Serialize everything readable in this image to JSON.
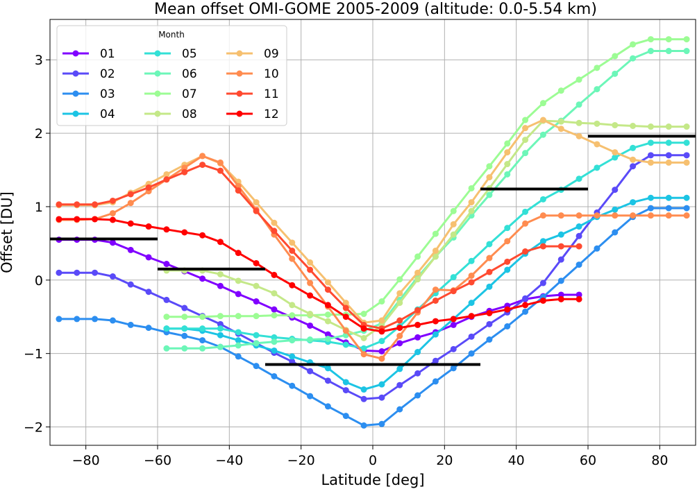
{
  "chart_data": {
    "type": "line",
    "title": "Mean offset OMI-GOME 2005-2009 (altitude: 0.0-5.54 km)",
    "xlabel": "Latitude [deg]",
    "ylabel": "Offset [DU]",
    "xlim": [
      -90,
      90
    ],
    "ylim": [
      -2.25,
      3.55
    ],
    "xticks": [
      -80,
      -60,
      -40,
      -20,
      0,
      20,
      40,
      60,
      80
    ],
    "xtick_labels": [
      "−80",
      "−60",
      "−40",
      "−20",
      "0",
      "20",
      "40",
      "60",
      "80"
    ],
    "yticks": [
      -2,
      -1,
      0,
      1,
      2,
      3
    ],
    "ytick_labels": [
      "−2",
      "−1",
      "0",
      "1",
      "2",
      "3"
    ],
    "grid": true,
    "legend": {
      "title": "Month",
      "placement": "top-left",
      "columns": 3
    },
    "series": [
      {
        "name": "01",
        "color": "#8000ff",
        "x": [
          -87.5,
          -82.5,
          -77.5,
          -72.5,
          -67.5,
          -62.5,
          -57.5,
          -52.5,
          -47.5,
          -42.5,
          -37.5,
          -32.5,
          -27.5,
          -22.5,
          -17.5,
          -12.5,
          -7.5,
          -2.5,
          2.5,
          7.5,
          12.5,
          17.5,
          22.5,
          27.5,
          32.5,
          37.5,
          42.5,
          47.5,
          52.5,
          57.5
        ],
        "y": [
          0.55,
          0.55,
          0.55,
          0.51,
          0.41,
          0.31,
          0.22,
          0.12,
          0.02,
          -0.08,
          -0.19,
          -0.29,
          -0.4,
          -0.51,
          -0.62,
          -0.74,
          -0.85,
          -0.96,
          -0.97,
          -0.86,
          -0.78,
          -0.71,
          -0.61,
          -0.5,
          -0.42,
          -0.35,
          -0.26,
          -0.22,
          -0.2,
          -0.2
        ]
      },
      {
        "name": "02",
        "color": "#5a4af8",
        "x": [
          -87.5,
          -82.5,
          -77.5,
          -72.5,
          -67.5,
          -62.5,
          -57.5,
          -52.5,
          -47.5,
          -42.5,
          -37.5,
          -32.5,
          -27.5,
          -22.5,
          -17.5,
          -12.5,
          -7.5,
          -2.5,
          2.5,
          7.5,
          12.5,
          17.5,
          22.5,
          27.5,
          32.5,
          37.5,
          42.5,
          47.5,
          52.5,
          57.5,
          62.5,
          67.5,
          72.5,
          77.5,
          82.5,
          87.5
        ],
        "y": [
          0.1,
          0.1,
          0.1,
          0.05,
          -0.06,
          -0.16,
          -0.27,
          -0.38,
          -0.49,
          -0.6,
          -0.73,
          -0.86,
          -0.99,
          -1.11,
          -1.24,
          -1.37,
          -1.5,
          -1.62,
          -1.6,
          -1.43,
          -1.27,
          -1.1,
          -0.94,
          -0.77,
          -0.6,
          -0.44,
          -0.25,
          -0.04,
          0.28,
          0.6,
          0.92,
          1.23,
          1.55,
          1.7,
          1.7,
          1.7
        ]
      },
      {
        "name": "03",
        "color": "#2c8ef0",
        "x": [
          -87.5,
          -82.5,
          -77.5,
          -72.5,
          -67.5,
          -62.5,
          -57.5,
          -52.5,
          -47.5,
          -42.5,
          -37.5,
          -32.5,
          -27.5,
          -22.5,
          -17.5,
          -12.5,
          -7.5,
          -2.5,
          2.5,
          7.5,
          12.5,
          17.5,
          22.5,
          27.5,
          32.5,
          37.5,
          42.5,
          47.5,
          52.5,
          57.5,
          62.5,
          67.5,
          72.5,
          77.5,
          82.5,
          87.5
        ],
        "y": [
          -0.53,
          -0.53,
          -0.53,
          -0.55,
          -0.61,
          -0.65,
          -0.71,
          -0.76,
          -0.82,
          -0.91,
          -1.04,
          -1.17,
          -1.31,
          -1.44,
          -1.58,
          -1.72,
          -1.85,
          -1.98,
          -1.96,
          -1.76,
          -1.57,
          -1.38,
          -1.2,
          -1.0,
          -0.81,
          -0.63,
          -0.43,
          -0.23,
          -0.01,
          0.21,
          0.43,
          0.65,
          0.86,
          0.98,
          0.98,
          0.98
        ]
      },
      {
        "name": "04",
        "color": "#1cc4e4",
        "x": [
          -57.5,
          -52.5,
          -47.5,
          -42.5,
          -37.5,
          -32.5,
          -27.5,
          -22.5,
          -17.5,
          -12.5,
          -7.5,
          -2.5,
          2.5,
          7.5,
          12.5,
          17.5,
          22.5,
          27.5,
          32.5,
          37.5,
          42.5,
          47.5,
          52.5,
          57.5,
          62.5,
          67.5,
          72.5,
          77.5,
          82.5,
          87.5
        ],
        "y": [
          -0.66,
          -0.66,
          -0.69,
          -0.75,
          -0.82,
          -0.89,
          -0.96,
          -1.04,
          -1.12,
          -1.2,
          -1.39,
          -1.49,
          -1.42,
          -1.21,
          -0.98,
          -0.74,
          -0.53,
          -0.31,
          -0.09,
          0.14,
          0.36,
          0.53,
          0.62,
          0.73,
          0.86,
          0.96,
          1.06,
          1.12,
          1.12,
          1.12
        ]
      },
      {
        "name": "05",
        "color": "#33e0d6",
        "x": [
          -57.5,
          -52.5,
          -47.5,
          -42.5,
          -37.5,
          -32.5,
          -27.5,
          -22.5,
          -17.5,
          -12.5,
          -7.5,
          -2.5,
          2.5,
          7.5,
          12.5,
          17.5,
          22.5,
          27.5,
          32.5,
          37.5,
          42.5,
          47.5,
          52.5,
          57.5,
          62.5,
          67.5,
          72.5,
          77.5,
          82.5,
          87.5
        ],
        "y": [
          -0.66,
          -0.66,
          -0.66,
          -0.66,
          -0.71,
          -0.75,
          -0.78,
          -0.8,
          -0.82,
          -0.84,
          -0.88,
          -0.93,
          -0.83,
          -0.63,
          -0.4,
          -0.18,
          0.04,
          0.26,
          0.49,
          0.71,
          0.93,
          1.1,
          1.23,
          1.38,
          1.53,
          1.67,
          1.8,
          1.87,
          1.87,
          1.87
        ]
      },
      {
        "name": "06",
        "color": "#6cf6b8",
        "x": [
          -57.5,
          -52.5,
          -47.5,
          -42.5,
          -37.5,
          -32.5,
          -27.5,
          -22.5,
          -17.5,
          -12.5,
          -7.5,
          -2.5,
          2.5,
          7.5,
          12.5,
          17.5,
          22.5,
          27.5,
          32.5,
          37.5,
          42.5,
          47.5,
          52.5,
          57.5,
          62.5,
          67.5,
          72.5,
          77.5,
          82.5,
          87.5
        ],
        "y": [
          -0.93,
          -0.93,
          -0.93,
          -0.91,
          -0.89,
          -0.86,
          -0.84,
          -0.82,
          -0.81,
          -0.8,
          -0.75,
          -0.69,
          -0.59,
          -0.27,
          0.04,
          0.32,
          0.58,
          0.88,
          1.16,
          1.44,
          1.73,
          1.98,
          2.17,
          2.39,
          2.6,
          2.81,
          3.02,
          3.12,
          3.12,
          3.12
        ]
      },
      {
        "name": "07",
        "color": "#9cfc94",
        "x": [
          -57.5,
          -52.5,
          -47.5,
          -42.5,
          -37.5,
          -32.5,
          -27.5,
          -22.5,
          -17.5,
          -12.5,
          -7.5,
          -2.5,
          2.5,
          7.5,
          12.5,
          17.5,
          22.5,
          27.5,
          32.5,
          37.5,
          42.5,
          47.5,
          52.5,
          57.5,
          62.5,
          67.5,
          72.5,
          77.5,
          82.5,
          87.5
        ],
        "y": [
          -0.5,
          -0.5,
          -0.5,
          -0.49,
          -0.49,
          -0.49,
          -0.48,
          -0.48,
          -0.48,
          -0.47,
          -0.47,
          -0.46,
          -0.29,
          0.01,
          0.32,
          0.63,
          0.94,
          1.25,
          1.55,
          1.86,
          2.18,
          2.41,
          2.58,
          2.73,
          2.89,
          3.05,
          3.21,
          3.28,
          3.28,
          3.28
        ]
      },
      {
        "name": "08",
        "color": "#c4e888",
        "x": [
          -57.5,
          -52.5,
          -47.5,
          -42.5,
          -37.5,
          -32.5,
          -27.5,
          -22.5,
          -17.5,
          -12.5,
          -7.5,
          -2.5,
          2.5,
          7.5,
          12.5,
          17.5,
          22.5,
          27.5,
          32.5,
          37.5,
          42.5,
          47.5,
          52.5,
          57.5,
          62.5,
          67.5,
          72.5,
          77.5,
          82.5,
          87.5
        ],
        "y": [
          0.13,
          0.13,
          0.13,
          0.08,
          -0.01,
          -0.08,
          -0.18,
          -0.34,
          -0.46,
          -0.56,
          -0.68,
          -0.79,
          -0.62,
          -0.31,
          0.01,
          0.32,
          0.62,
          0.94,
          1.25,
          1.58,
          1.91,
          2.17,
          2.16,
          2.14,
          2.13,
          2.11,
          2.1,
          2.09,
          2.09,
          2.09
        ]
      },
      {
        "name": "09",
        "color": "#f6c070",
        "x": [
          -87.5,
          -82.5,
          -77.5,
          -72.5,
          -67.5,
          -62.5,
          -57.5,
          -52.5,
          -47.5,
          -42.5,
          -37.5,
          -32.5,
          -27.5,
          -22.5,
          -17.5,
          -12.5,
          -7.5,
          -2.5,
          2.5,
          7.5,
          12.5,
          17.5,
          22.5,
          27.5,
          32.5,
          37.5,
          42.5,
          47.5,
          52.5,
          57.5,
          62.5,
          67.5,
          72.5,
          77.5,
          82.5,
          87.5
        ],
        "y": [
          1.02,
          1.02,
          1.02,
          1.06,
          1.19,
          1.31,
          1.44,
          1.57,
          1.69,
          1.59,
          1.34,
          1.06,
          0.78,
          0.51,
          0.24,
          -0.03,
          -0.31,
          -0.58,
          -0.55,
          -0.18,
          0.1,
          0.4,
          0.76,
          1.06,
          1.4,
          1.74,
          2.07,
          2.18,
          2.06,
          1.96,
          1.85,
          1.74,
          1.64,
          1.6,
          1.6,
          1.6
        ]
      },
      {
        "name": "10",
        "color": "#ff8c50",
        "x": [
          -87.5,
          -82.5,
          -77.5,
          -72.5,
          -67.5,
          -62.5,
          -57.5,
          -52.5,
          -47.5,
          -42.5,
          -37.5,
          -32.5,
          -27.5,
          -22.5,
          -17.5,
          -12.5,
          -7.5,
          -2.5,
          2.5,
          7.5,
          12.5,
          17.5,
          22.5,
          27.5,
          32.5,
          37.5,
          42.5,
          47.5,
          52.5,
          57.5,
          62.5,
          67.5,
          72.5,
          77.5,
          82.5,
          87.5
        ],
        "y": [
          0.82,
          0.82,
          0.83,
          0.91,
          1.05,
          1.21,
          1.37,
          1.53,
          1.69,
          1.6,
          1.28,
          0.96,
          0.62,
          0.29,
          -0.04,
          -0.36,
          -0.69,
          -1.01,
          -1.07,
          -0.76,
          -0.44,
          -0.13,
          -0.14,
          0.06,
          0.3,
          0.53,
          0.77,
          0.88,
          0.88,
          0.88,
          0.88,
          0.88,
          0.88,
          0.88,
          0.88,
          0.88
        ]
      },
      {
        "name": "11",
        "color": "#ff4a30",
        "x": [
          -87.5,
          -82.5,
          -77.5,
          -72.5,
          -67.5,
          -62.5,
          -57.5,
          -52.5,
          -47.5,
          -42.5,
          -37.5,
          -32.5,
          -27.5,
          -22.5,
          -17.5,
          -12.5,
          -7.5,
          -2.5,
          2.5,
          7.5,
          12.5,
          17.5,
          22.5,
          27.5,
          32.5,
          37.5,
          42.5,
          47.5,
          52.5,
          57.5
        ],
        "y": [
          1.03,
          1.03,
          1.03,
          1.08,
          1.17,
          1.26,
          1.37,
          1.47,
          1.57,
          1.49,
          1.22,
          0.94,
          0.67,
          0.4,
          0.14,
          -0.13,
          -0.38,
          -0.61,
          -0.66,
          -0.55,
          -0.41,
          -0.28,
          -0.15,
          -0.03,
          0.11,
          0.25,
          0.39,
          0.46,
          0.46,
          0.46
        ]
      },
      {
        "name": "12",
        "color": "#ff0000",
        "x": [
          -87.5,
          -82.5,
          -77.5,
          -72.5,
          -67.5,
          -62.5,
          -57.5,
          -52.5,
          -47.5,
          -42.5,
          -37.5,
          -32.5,
          -27.5,
          -22.5,
          -17.5,
          -12.5,
          -7.5,
          -2.5,
          2.5,
          7.5,
          12.5,
          17.5,
          22.5,
          27.5,
          32.5,
          37.5,
          42.5,
          47.5,
          52.5,
          57.5
        ],
        "y": [
          0.83,
          0.83,
          0.83,
          0.82,
          0.77,
          0.73,
          0.69,
          0.65,
          0.61,
          0.52,
          0.37,
          0.23,
          0.07,
          -0.07,
          -0.21,
          -0.34,
          -0.5,
          -0.66,
          -0.7,
          -0.65,
          -0.61,
          -0.56,
          -0.53,
          -0.49,
          -0.45,
          -0.4,
          -0.34,
          -0.28,
          -0.26,
          -0.26
        ]
      }
    ],
    "reference_lines": {
      "color": "#000000",
      "segments": [
        {
          "x": [
            -90,
            -60
          ],
          "y": 0.56
        },
        {
          "x": [
            -60,
            -30
          ],
          "y": 0.15
        },
        {
          "x": [
            -30,
            30
          ],
          "y": -1.15
        },
        {
          "x": [
            30,
            60
          ],
          "y": 1.24
        },
        {
          "x": [
            60,
            90
          ],
          "y": 1.96
        }
      ]
    }
  }
}
